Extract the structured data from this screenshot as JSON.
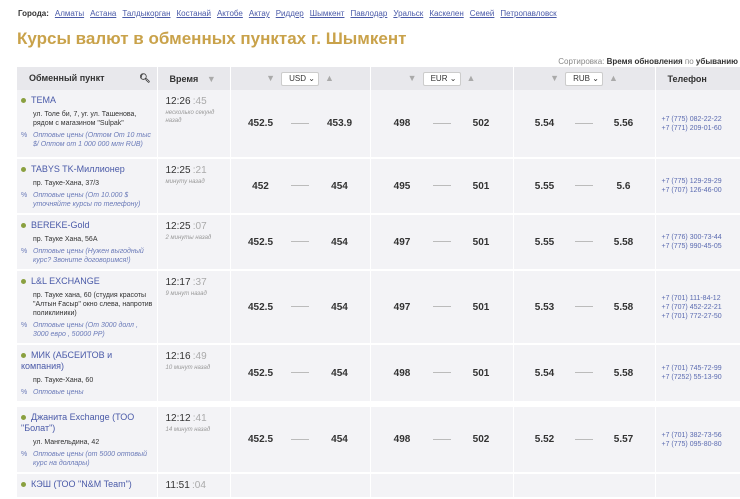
{
  "cities": {
    "label": "Города:",
    "items": [
      "Алматы",
      "Астана",
      "Талдыкорган",
      "Костанай",
      "Актобе",
      "Актау",
      "Риддер",
      "Шымкент",
      "Павлодар",
      "Уральск",
      "Каскелен",
      "Семей",
      "Петропавловск"
    ]
  },
  "title": "Курсы валют в обменных пунктах г. Шымкент",
  "sort": {
    "label": "Сортировка:",
    "field": "Время обновления",
    "by": "по",
    "order": "убыванию"
  },
  "headers": {
    "name": "Обменный пункт",
    "time": "Время",
    "usd": "USD",
    "eur": "EUR",
    "rub": "RUB",
    "phone": "Телефон"
  },
  "rows": [
    {
      "name": "TEMA",
      "addr": "ул. Толе би, 7, уг. ул. Ташенова, рядом с магазином \"Sulpak\"",
      "opt": "Оптовые цены (Оптом От 10 тыс $/ Оптом от 1 000 000 млн RUB)",
      "time": "12:26",
      "sec": ":45",
      "ago": "несколько секунд назад",
      "usd": [
        "452.5",
        "453.9"
      ],
      "eur": [
        "498",
        "502"
      ],
      "rub": [
        "5.54",
        "5.56"
      ],
      "phones": [
        "+7 (775) 082-22-22",
        "+7 (771) 209-01-60"
      ]
    },
    {
      "name": "TABYS TK-Миллионер",
      "addr": "пр. Тауке-Хана, 37/3",
      "opt": "Оптовые цены (От 10.000 $ уточняйте курсы по телефону)",
      "time": "12:25",
      "sec": ":21",
      "ago": "минуту назад",
      "usd": [
        "452",
        "454"
      ],
      "eur": [
        "495",
        "501"
      ],
      "rub": [
        "5.55",
        "5.6"
      ],
      "phones": [
        "+7 (775) 129-29-29",
        "+7 (707) 126-46-00"
      ]
    },
    {
      "name": "BEREKE-Gold",
      "addr": "пр. Тауке Хана, 56А",
      "opt": "Оптовые цены (Нужен выгодный курс? Звоните договоримся!)",
      "time": "12:25",
      "sec": ":07",
      "ago": "2 минуты назад",
      "usd": [
        "452.5",
        "454"
      ],
      "eur": [
        "497",
        "501"
      ],
      "rub": [
        "5.55",
        "5.58"
      ],
      "phones": [
        "+7 (776) 300-73-44",
        "+7 (775) 990-45-05"
      ]
    },
    {
      "name": "L&L EXCHANGE",
      "addr": "пр. Тауке хана, 60 (студия красоты \"Алтын Ғасыр\" окно слева, напротив поликлиники)",
      "opt": "Оптовые цены (От 3000 долл , 3000 евро , 50000 РР)",
      "time": "12:17",
      "sec": ":37",
      "ago": "9 минут назад",
      "usd": [
        "452.5",
        "454"
      ],
      "eur": [
        "497",
        "501"
      ],
      "rub": [
        "5.53",
        "5.58"
      ],
      "phones": [
        "+7 (701) 111-84-12",
        "+7 (707) 452-22-21",
        "+7 (701) 772-27-50"
      ]
    },
    {
      "name": "МИК (АБСЕИТОВ и компания)",
      "addr": "пр. Тауке-Хана, 60",
      "opt": "Оптовые цены",
      "time": "12:16",
      "sec": ":49",
      "ago": "10 минут назад",
      "usd": [
        "452.5",
        "454"
      ],
      "eur": [
        "498",
        "501"
      ],
      "rub": [
        "5.54",
        "5.58"
      ],
      "phones": [
        "+7 (701) 745-72-99",
        "+7 (7252) 55-13-90"
      ]
    },
    {
      "name": "Джанита Exchange (ТОО \"Болат\")",
      "addr": "ул. Мангельдина, 42",
      "opt": "Оптовые цены (от 5000 оптовый курс на доллары)",
      "time": "12:12",
      "sec": ":41",
      "ago": "14 минут назад",
      "usd": [
        "452.5",
        "454"
      ],
      "eur": [
        "498",
        "502"
      ],
      "rub": [
        "5.52",
        "5.57"
      ],
      "phones": [
        "+7 (701) 382-73-56",
        "+7 (775) 095-80-80"
      ]
    },
    {
      "name": "КЭШ (ТОО \"N&M Team\")",
      "time": "11:51",
      "sec": ":04"
    }
  ]
}
